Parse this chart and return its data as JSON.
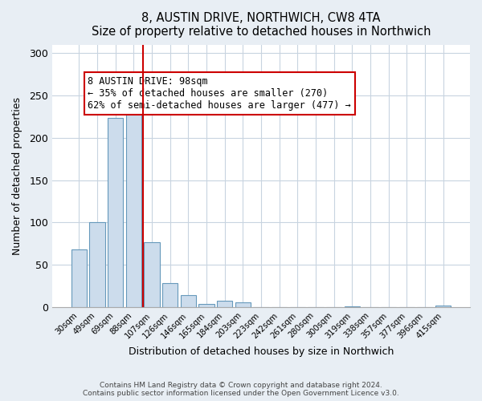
{
  "title": "8, AUSTIN DRIVE, NORTHWICH, CW8 4TA",
  "subtitle": "Size of property relative to detached houses in Northwich",
  "xlabel": "Distribution of detached houses by size in Northwich",
  "ylabel": "Number of detached properties",
  "bar_color": "#ccdcec",
  "bar_edge_color": "#6699bb",
  "categories": [
    "30sqm",
    "49sqm",
    "69sqm",
    "88sqm",
    "107sqm",
    "126sqm",
    "146sqm",
    "165sqm",
    "184sqm",
    "203sqm",
    "223sqm",
    "242sqm",
    "261sqm",
    "280sqm",
    "300sqm",
    "319sqm",
    "338sqm",
    "357sqm",
    "377sqm",
    "396sqm",
    "415sqm"
  ],
  "values": [
    68,
    100,
    223,
    245,
    77,
    29,
    14,
    4,
    8,
    6,
    0,
    0,
    0,
    0,
    0,
    1,
    0,
    0,
    0,
    0,
    2
  ],
  "vline_x": 3.5,
  "vline_color": "#cc0000",
  "ylim": [
    0,
    310
  ],
  "yticks": [
    0,
    50,
    100,
    150,
    200,
    250,
    300
  ],
  "annotation_text": "8 AUSTIN DRIVE: 98sqm\n← 35% of detached houses are smaller (270)\n62% of semi-detached houses are larger (477) →",
  "footer1": "Contains HM Land Registry data © Crown copyright and database right 2024.",
  "footer2": "Contains public sector information licensed under the Open Government Licence v3.0.",
  "background_color": "#e8eef4",
  "plot_bg_color": "#ffffff",
  "grid_color": "#c8d4e0"
}
